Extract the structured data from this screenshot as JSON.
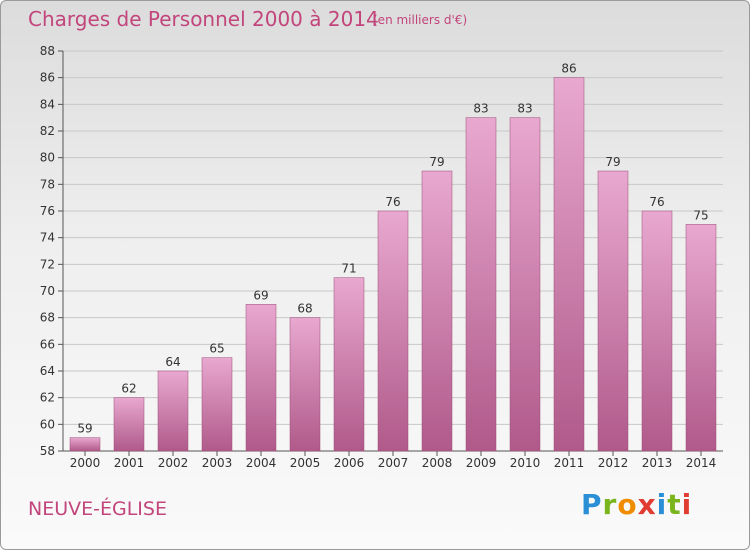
{
  "header": {
    "title": "Charges de Personnel 2000 à 2014",
    "unit": "(en milliers d'€)"
  },
  "footer": {
    "commune": "NEUVE-ÉGLISE",
    "logo_letters": [
      "P",
      "r",
      "o",
      "x",
      "i",
      "t",
      "i"
    ],
    "logo_colors": [
      "#2a8fd6",
      "#7ab51d",
      "#f08c00",
      "#e03c31",
      "#2a8fd6",
      "#7ab51d",
      "#e03c31"
    ]
  },
  "colors": {
    "bar_top": "#e8a8cf",
    "bar_bottom": "#b05a8a",
    "accent": "#c2457b",
    "grid": "#c8c8c8"
  },
  "chart_data": {
    "type": "bar",
    "title": "Charges de Personnel 2000 à 2014",
    "subtitle": "(en milliers d'€)",
    "xlabel": "",
    "ylabel": "",
    "categories": [
      "2000",
      "2001",
      "2002",
      "2003",
      "2004",
      "2005",
      "2006",
      "2007",
      "2008",
      "2009",
      "2010",
      "2011",
      "2012",
      "2013",
      "2014"
    ],
    "values": [
      59,
      62,
      64,
      65,
      69,
      68,
      71,
      76,
      79,
      83,
      83,
      86,
      79,
      76,
      75
    ],
    "ylim": [
      58,
      88
    ],
    "yticks": [
      58,
      60,
      62,
      64,
      66,
      68,
      70,
      72,
      74,
      76,
      78,
      80,
      82,
      84,
      86,
      88
    ],
    "grid": true,
    "legend": "none"
  }
}
